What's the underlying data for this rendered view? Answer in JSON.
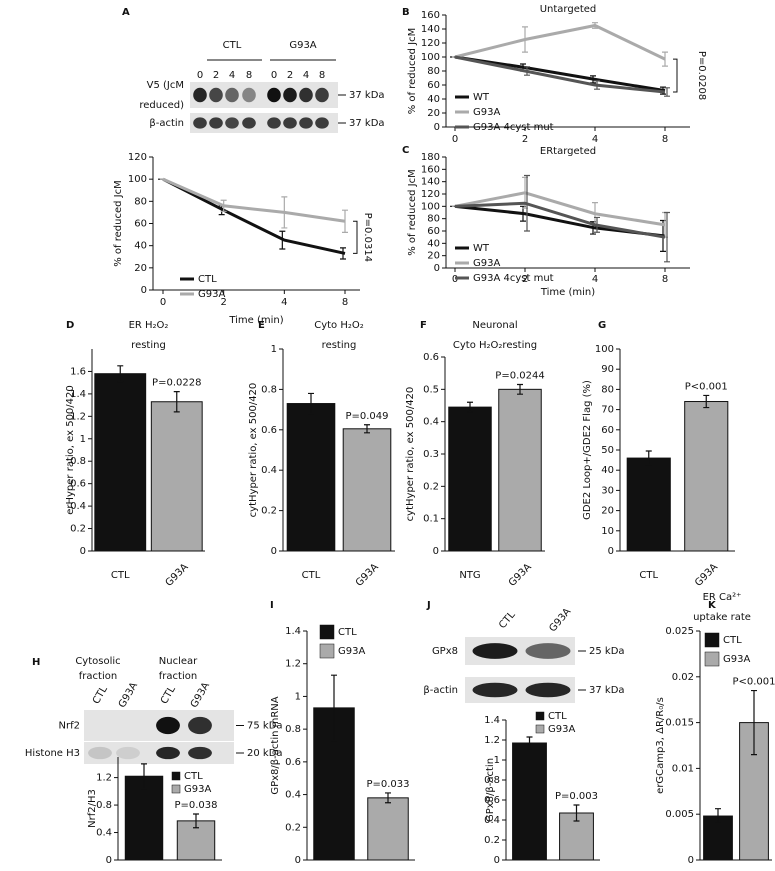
{
  "panel_labels": [
    "A",
    "B",
    "C",
    "D",
    "E",
    "F",
    "G",
    "H",
    "I",
    "J",
    "K"
  ],
  "blots": [
    {
      "groups": [
        [
          "CTL"
        ],
        [
          "G93A"
        ]
      ],
      "lanes": [
        "0",
        "2",
        "4",
        "8",
        "0",
        "2",
        "4",
        "8"
      ],
      "rows": [
        [
          "V5 (JcM",
          "reduced)"
        ],
        [
          "β-actin"
        ]
      ],
      "markers": [
        "37 kDa",
        "37 kDa"
      ]
    },
    {
      "groups": [
        [
          "Cytosolic",
          "fraction"
        ],
        [
          "Nuclear",
          "fraction"
        ]
      ],
      "lanes": [
        "CTL",
        "G93A",
        "CTL",
        "G93A"
      ],
      "rows": [
        [
          "Nrf2"
        ],
        [
          "Histone H3"
        ]
      ],
      "markers": [
        "75 kDa",
        "20 kDa"
      ]
    },
    {
      "groups": [],
      "lanes": [
        "CTL",
        "G93A"
      ],
      "rows": [
        [
          "GPx8"
        ],
        [
          "β-actin"
        ]
      ],
      "markers": [
        "25 kDa",
        "37 kDa"
      ]
    }
  ],
  "chart_data": [
    {
      "type": "line",
      "categories": [
        "0",
        "2",
        "4",
        "8"
      ],
      "xlabel": "Time (min)",
      "ylabel": "% of reduced JcM",
      "ylim": [
        0,
        120
      ],
      "yticks": [
        0,
        20,
        40,
        60,
        80,
        100,
        120
      ],
      "annotation": "P=0.0314",
      "series": [
        {
          "name": "CTL",
          "color": "#111111",
          "values": [
            100,
            72,
            45,
            33
          ],
          "errors": [
            0,
            4,
            8,
            5
          ]
        },
        {
          "name": "G93A",
          "color": "#aaaaaa",
          "values": [
            100,
            76,
            70,
            62
          ],
          "errors": [
            0,
            5,
            14,
            10
          ]
        }
      ]
    },
    {
      "type": "line",
      "title": [
        "Untargeted"
      ],
      "categories": [
        "0",
        "2",
        "4",
        "8"
      ],
      "ylabel": "% of reduced JcM",
      "ylim": [
        0,
        160
      ],
      "yticks": [
        0,
        20,
        40,
        60,
        80,
        100,
        120,
        140,
        160
      ],
      "annotation": "P=0.0208",
      "series": [
        {
          "name": "WT",
          "color": "#111111",
          "values": [
            100,
            85,
            68,
            52
          ],
          "errors": [
            0,
            5,
            5,
            5
          ]
        },
        {
          "name": "G93A",
          "color": "#aaaaaa",
          "values": [
            100,
            125,
            145,
            97
          ],
          "errors": [
            0,
            18,
            4,
            10
          ]
        },
        {
          "name": "G93A 4cyst mut",
          "color": "#555555",
          "values": [
            100,
            80,
            60,
            50
          ],
          "errors": [
            0,
            6,
            6,
            6
          ]
        }
      ]
    },
    {
      "type": "line",
      "title": [
        "ERtargeted"
      ],
      "categories": [
        "0",
        "2",
        "4",
        "8"
      ],
      "xlabel": "Time (min)",
      "ylabel": "% of reduced JcM",
      "ylim": [
        0,
        180
      ],
      "yticks": [
        0,
        20,
        40,
        60,
        80,
        100,
        120,
        140,
        160,
        180
      ],
      "series": [
        {
          "name": "WT",
          "color": "#111111",
          "values": [
            100,
            88,
            65,
            52
          ],
          "errors": [
            0,
            12,
            10,
            25
          ]
        },
        {
          "name": "G93A",
          "color": "#aaaaaa",
          "values": [
            100,
            122,
            88,
            70
          ],
          "errors": [
            0,
            25,
            18,
            20
          ]
        },
        {
          "name": "G93A 4cyst mut",
          "color": "#555555",
          "values": [
            100,
            105,
            70,
            50
          ],
          "errors": [
            0,
            45,
            12,
            40
          ]
        }
      ]
    },
    {
      "type": "bar",
      "title": [
        "ER H₂O₂",
        "resting"
      ],
      "categories": [
        "CTL",
        "G93A"
      ],
      "values": [
        1.58,
        1.33
      ],
      "errors": [
        0.07,
        0.09
      ],
      "colors": [
        "#111111",
        "#aaaaaa"
      ],
      "ylabel": "erHyper ratio, ex 500/420",
      "ylim": [
        0,
        1.8
      ],
      "yticks": [
        0,
        0.2,
        0.4,
        0.6,
        0.8,
        1,
        1.2,
        1.4,
        1.6
      ],
      "annotation": "P=0.0228"
    },
    {
      "type": "bar",
      "title": [
        "Cyto H₂O₂",
        "resting"
      ],
      "categories": [
        "CTL",
        "G93A"
      ],
      "values": [
        0.73,
        0.605
      ],
      "errors": [
        0.05,
        0.02
      ],
      "colors": [
        "#111111",
        "#aaaaaa"
      ],
      "ylabel": "cytHyper ratio, ex 500/420",
      "ylim": [
        0,
        1
      ],
      "yticks": [
        0,
        0.2,
        0.4,
        0.6,
        0.8,
        1
      ],
      "annotation": "P=0.049"
    },
    {
      "type": "bar",
      "title": [
        "Neuronal",
        "Cyto H₂O₂resting"
      ],
      "categories": [
        "NTG",
        "G93A"
      ],
      "values": [
        0.445,
        0.5
      ],
      "errors": [
        0.015,
        0.015
      ],
      "colors": [
        "#111111",
        "#aaaaaa"
      ],
      "ylabel": "cytHyper ratio, ex 500/420",
      "ylim": [
        0,
        0.6
      ],
      "yticks": [
        0,
        0.1,
        0.2,
        0.3,
        0.4,
        0.5,
        0.6
      ],
      "annotation": "P=0.0244"
    },
    {
      "type": "bar",
      "categories": [
        "CTL",
        "G93A"
      ],
      "values": [
        46,
        74
      ],
      "errors": [
        3.5,
        3
      ],
      "colors": [
        "#111111",
        "#aaaaaa"
      ],
      "ylabel": "GDE2 Loop+/GDE2 Flag (%)",
      "ylim": [
        0,
        100
      ],
      "yticks": [
        0,
        10,
        20,
        30,
        40,
        50,
        60,
        70,
        80,
        90,
        100
      ],
      "annotation": "P<0.001"
    },
    {
      "type": "bar",
      "categories": [
        "CTL",
        "G93A"
      ],
      "values": [
        1.22,
        0.57
      ],
      "errors": [
        0.18,
        0.1
      ],
      "colors": [
        "#111111",
        "#aaaaaa"
      ],
      "ylabel": "Nrf2/H3",
      "ylim": [
        0,
        1.5
      ],
      "yticks": [
        0,
        0.4,
        0.8,
        1.2
      ],
      "annotation": "P=0.038",
      "legend": "top-right"
    },
    {
      "type": "bar",
      "categories": [
        "CTL",
        "G93A"
      ],
      "values": [
        0.93,
        0.38
      ],
      "errors": [
        0.2,
        0.03
      ],
      "colors": [
        "#111111",
        "#aaaaaa"
      ],
      "ylabel": "GPx8/β-actin mRNA",
      "ylim": [
        0,
        1.4
      ],
      "yticks": [
        0,
        0.2,
        0.4,
        0.6,
        0.8,
        1,
        1.2,
        1.4
      ],
      "annotation": "P=0.033",
      "legend": "top-right"
    },
    {
      "type": "bar",
      "categories": [
        "CTL",
        "G93A"
      ],
      "values": [
        1.17,
        0.47
      ],
      "errors": [
        0.06,
        0.08
      ],
      "colors": [
        "#111111",
        "#aaaaaa"
      ],
      "ylabel": "GPx8/β-actin",
      "ylim": [
        0,
        1.4
      ],
      "yticks": [
        0,
        0.2,
        0.4,
        0.6,
        0.8,
        1,
        1.2,
        1.4
      ],
      "annotation": "P=0.003",
      "legend": "top-right"
    },
    {
      "type": "bar",
      "title": [
        "ER Ca²⁺",
        "uptake rate"
      ],
      "categories": [
        "CTL",
        "G93A"
      ],
      "values": [
        0.0048,
        0.015
      ],
      "errors": [
        0.0008,
        0.0035
      ],
      "colors": [
        "#111111",
        "#aaaaaa"
      ],
      "ylabel": "erGCamp3, ΔR/R₀/s",
      "ylim": [
        0,
        0.025
      ],
      "yticks": [
        0,
        0.005,
        0.01,
        0.015,
        0.02,
        0.025
      ],
      "annotation": "P<0.001",
      "legend": "top-right"
    }
  ]
}
